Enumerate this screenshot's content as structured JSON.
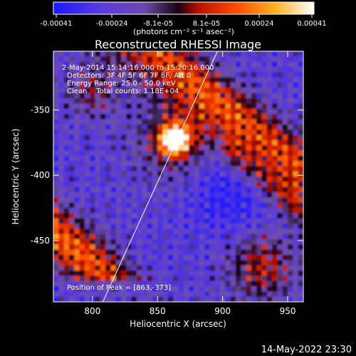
{
  "colorbar": {
    "tick_labels": [
      "-0.00041",
      "-0.00024",
      "-8.1e-05",
      "8.1e-05",
      "0.00024",
      "0.00041"
    ],
    "units_label": "(photons cm⁻² s⁻¹ asec⁻²)",
    "range": [
      -0.00041,
      0.00041
    ],
    "colormap": "blue-purple-black-red-orange-yellow-white"
  },
  "plot": {
    "title": "Reconstructed RHESSI Image",
    "info_lines": [
      " 2-May-2014 15:14:16.000 to 15:20:16.000",
      "Detectors: 3F 4F 5F 6F 7F 8F, Att 0",
      "Energy Range: 25.0 - 50.0 keV",
      "Clean    Total counts: 1.18E+04"
    ],
    "peak_label": "Position of Peak = [863,-373]",
    "xlabel": "Heliocentric X (arcsec)",
    "ylabel": "Heliocentric Y (arcsec)",
    "x_ticks": [
      "800",
      "850",
      "900",
      "950"
    ],
    "y_ticks": [
      "-350",
      "-400",
      "-450"
    ],
    "x_range": [
      770,
      962
    ],
    "y_range": [
      -497,
      -305
    ],
    "peak": [
      863,
      -373
    ],
    "limb_line": [
      [
        808,
        -497
      ],
      [
        896,
        -305
      ]
    ]
  },
  "footer": {
    "timestamp": "14-May-2022 23:30"
  }
}
